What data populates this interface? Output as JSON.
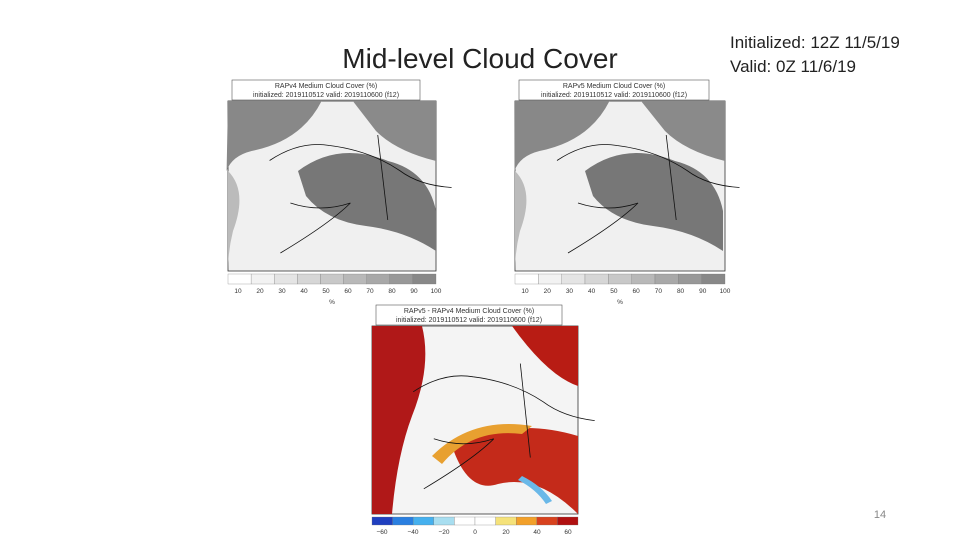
{
  "title": "Mid-level Cloud Cover",
  "run_info": {
    "initialized": "Initialized: 12Z 11/5/19",
    "valid": "Valid: 0Z 11/6/19"
  },
  "page_number": "14",
  "panels": [
    {
      "header_title": "RAPv4 Medium Cloud Cover (%)",
      "header_subtitle": "initialized: 2019110512 valid: 2019110600 (f12)",
      "colorbar_ticks": [
        "10",
        "20",
        "30",
        "40",
        "50",
        "60",
        "70",
        "80",
        "90",
        "100"
      ],
      "colorbar_unit": "%"
    },
    {
      "header_title": "RAPv5 Medium Cloud Cover (%)",
      "header_subtitle": "initialized: 2019110512 valid: 2019110600 (f12)",
      "colorbar_ticks": [
        "10",
        "20",
        "30",
        "40",
        "50",
        "60",
        "70",
        "80",
        "90",
        "100"
      ],
      "colorbar_unit": "%"
    },
    {
      "header_title": "RAPv5 - RAPv4 Medium Cloud Cover (%)",
      "header_subtitle": "initialized: 2019110512 valid: 2019110600 (f12)",
      "colorbar_ticks": [
        "−60",
        "−40",
        "−20",
        "0",
        "20",
        "40",
        "60"
      ],
      "colorbar_unit": "%"
    }
  ]
}
